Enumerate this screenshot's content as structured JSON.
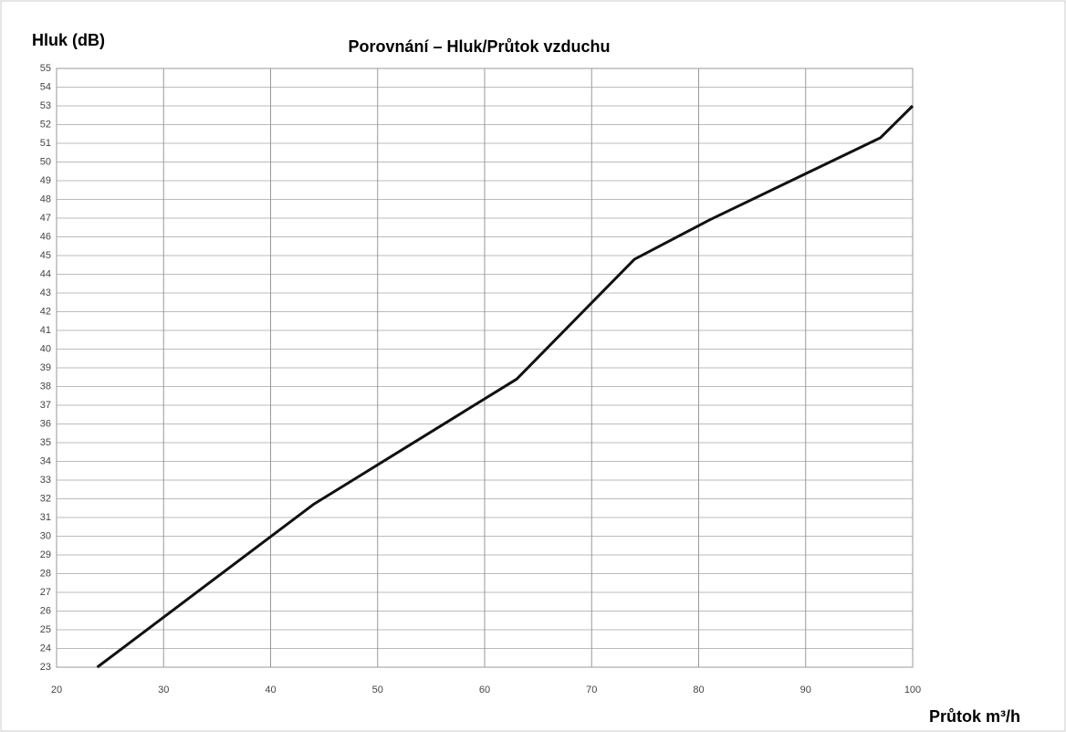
{
  "chart_data": {
    "type": "line",
    "title": "Porovnání – Hluk/Průtok vzduchu",
    "y_label": "Hluk (dB)",
    "x_label": "Průtok m³/h",
    "series": [
      {
        "name": null,
        "color": "#111111",
        "x": [
          23.8,
          44,
          63,
          74,
          81,
          97,
          100
        ],
        "values": [
          23,
          31.7,
          38.4,
          44.8,
          46.9,
          51.3,
          53
        ]
      }
    ],
    "xlim": [
      20,
      100
    ],
    "xticks": [
      20,
      30,
      40,
      50,
      60,
      70,
      80,
      90,
      100
    ],
    "ylim": [
      23,
      55
    ],
    "yticks": [
      23,
      24,
      25,
      26,
      27,
      28,
      29,
      30,
      31,
      32,
      33,
      34,
      35,
      36,
      37,
      38,
      39,
      40,
      41,
      42,
      43,
      44,
      45,
      46,
      47,
      48,
      49,
      50,
      51,
      52,
      53,
      54,
      55
    ],
    "grid": true
  }
}
